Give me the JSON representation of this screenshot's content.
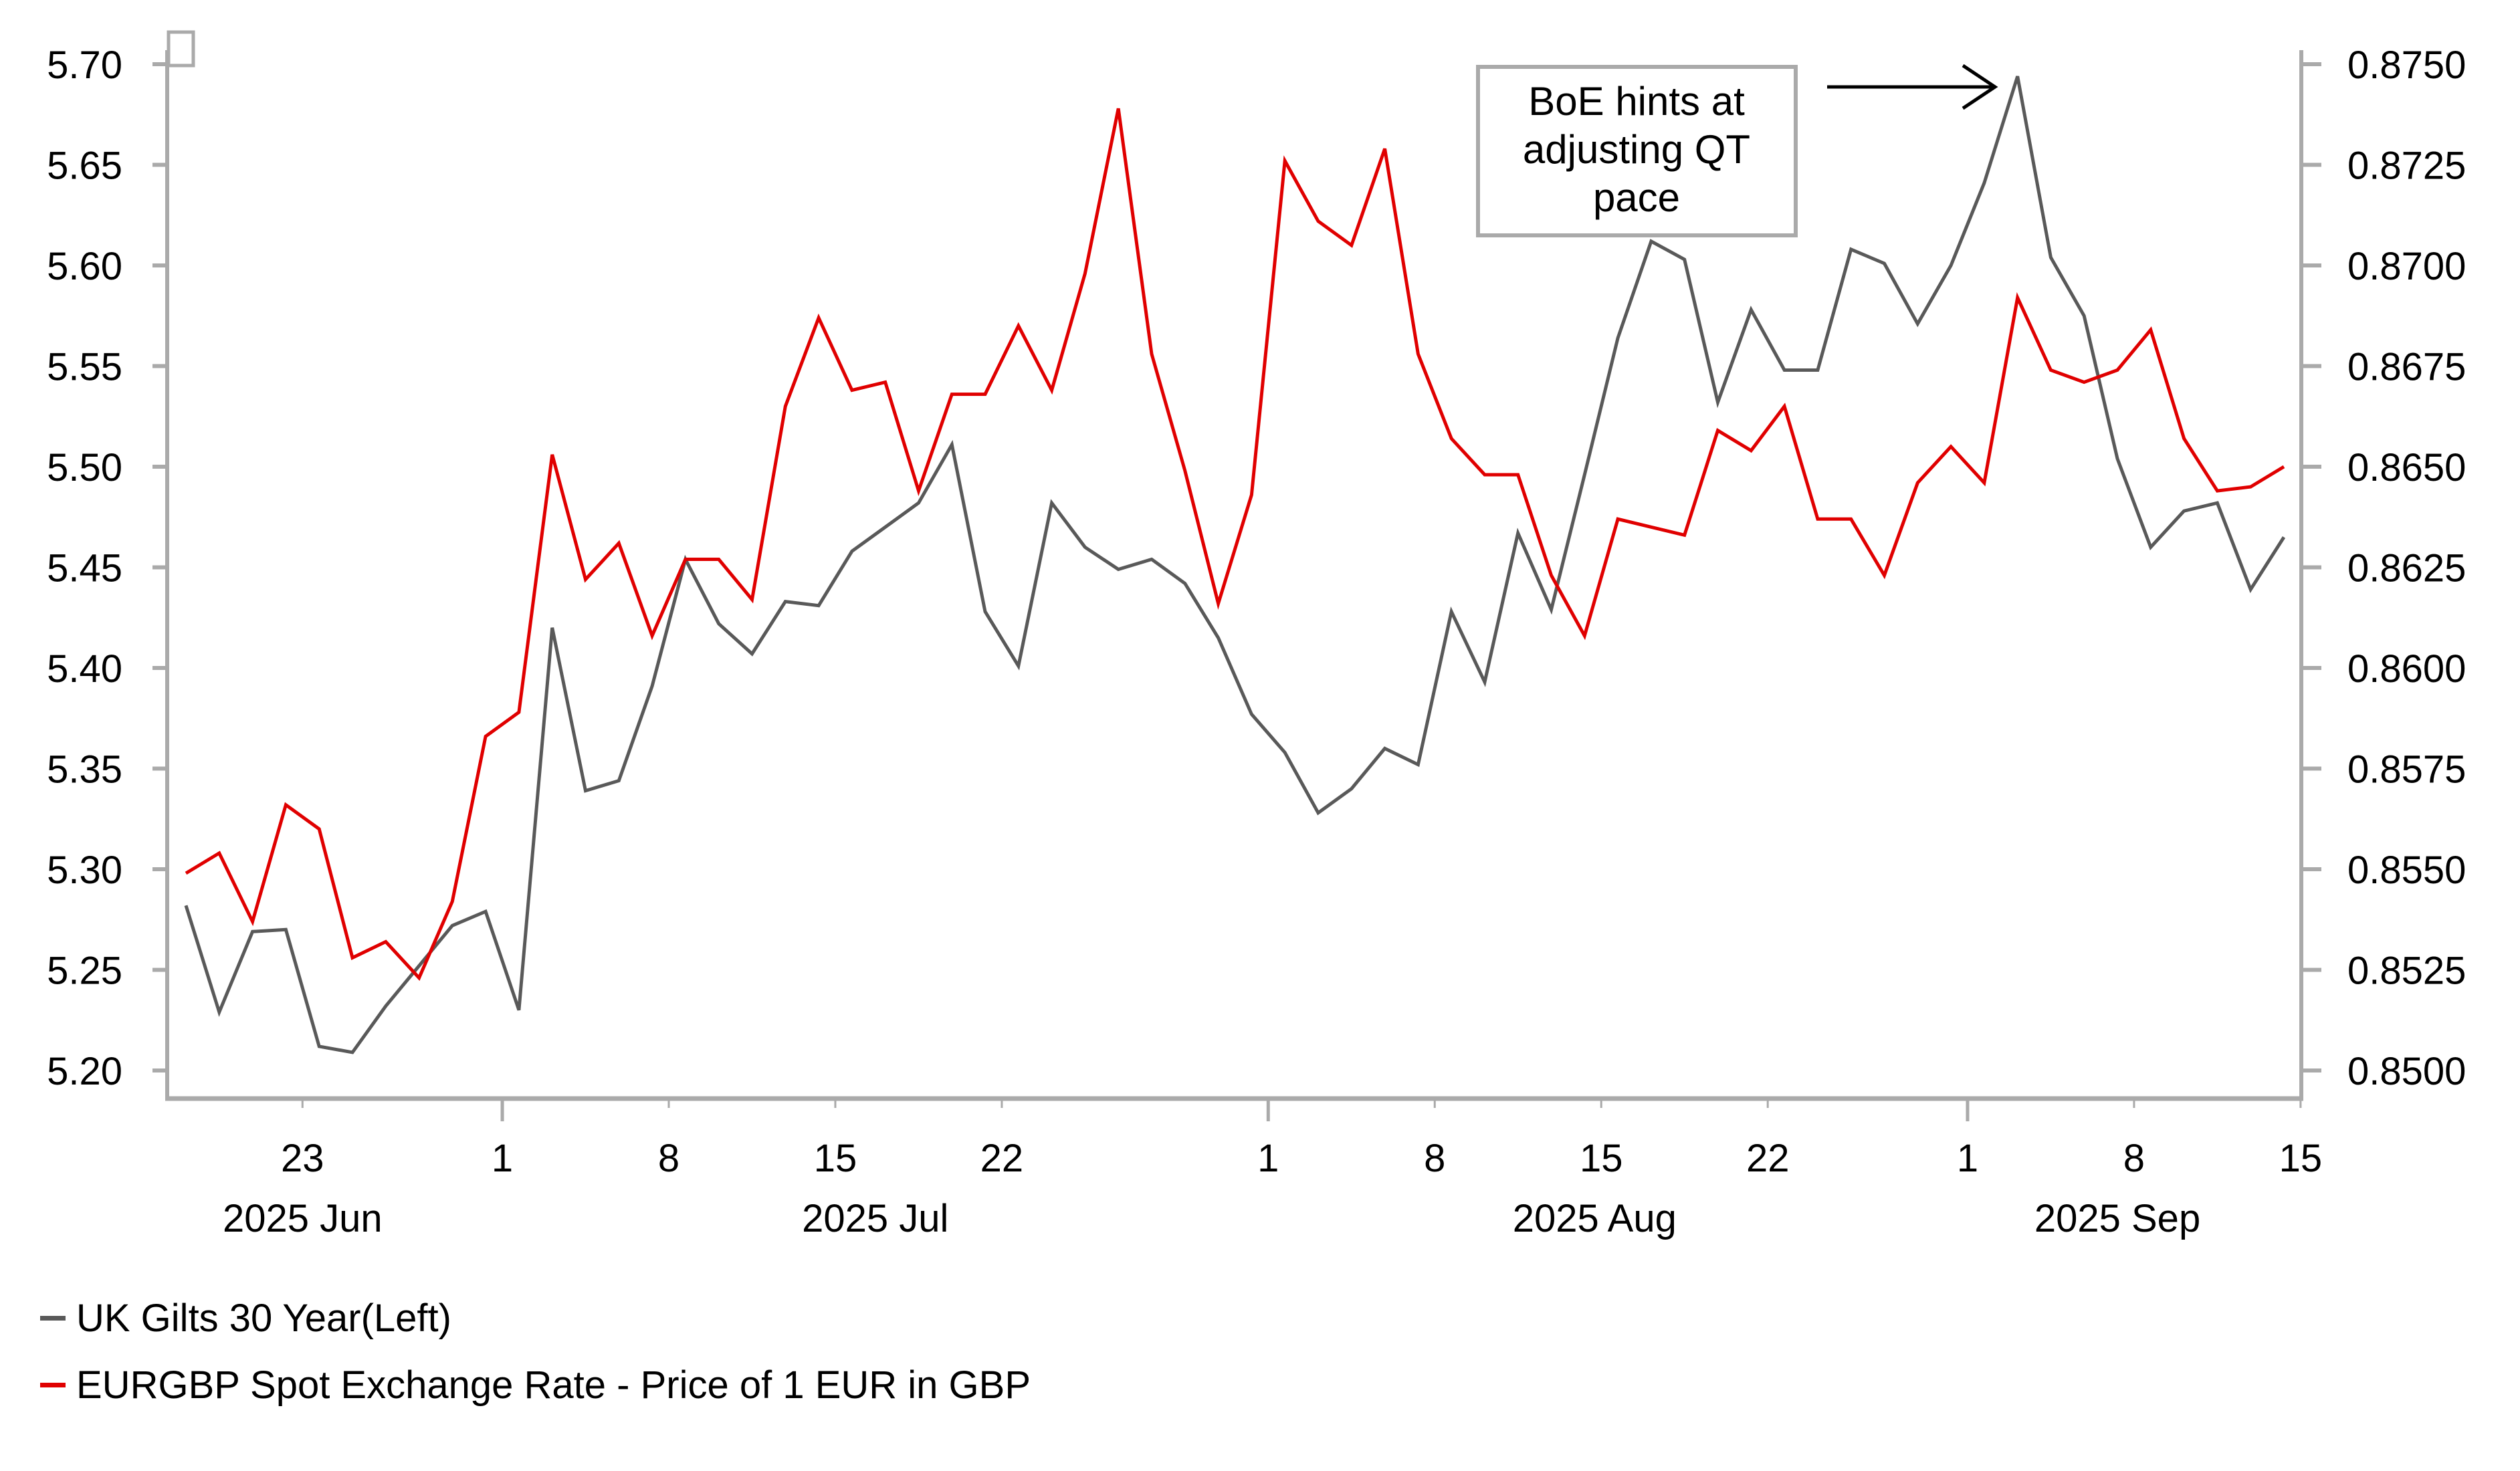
{
  "chart_data": {
    "type": "line",
    "title": "",
    "xlabel": "",
    "ylabel_left": "",
    "ylabel_right": "",
    "grid": false,
    "legend_position": "bottom-left",
    "left_axis": {
      "ylim": [
        5.2,
        5.7
      ],
      "ticks": [
        "5.20",
        "5.25",
        "5.30",
        "5.35",
        "5.40",
        "5.45",
        "5.50",
        "5.55",
        "5.60",
        "5.65",
        "5.70"
      ]
    },
    "right_axis": {
      "ylim": [
        0.85,
        0.875
      ],
      "ticks": [
        "0.8500",
        "0.8525",
        "0.8550",
        "0.8575",
        "0.8600",
        "0.8625",
        "0.8650",
        "0.8675",
        "0.8700",
        "0.8725",
        "0.8750"
      ]
    },
    "x": [
      "2025-06-17",
      "2025-06-18",
      "2025-06-19",
      "2025-06-20",
      "2025-06-23",
      "2025-06-24",
      "2025-06-25",
      "2025-06-26",
      "2025-06-27",
      "2025-06-30",
      "2025-07-01",
      "2025-07-02",
      "2025-07-03",
      "2025-07-04",
      "2025-07-07",
      "2025-07-08",
      "2025-07-09",
      "2025-07-10",
      "2025-07-11",
      "2025-07-14",
      "2025-07-15",
      "2025-07-16",
      "2025-07-17",
      "2025-07-18",
      "2025-07-21",
      "2025-07-22",
      "2025-07-23",
      "2025-07-24",
      "2025-07-25",
      "2025-07-28",
      "2025-07-29",
      "2025-07-30",
      "2025-07-31",
      "2025-08-01",
      "2025-08-04",
      "2025-08-05",
      "2025-08-06",
      "2025-08-07",
      "2025-08-08",
      "2025-08-11",
      "2025-08-12",
      "2025-08-13",
      "2025-08-14",
      "2025-08-15",
      "2025-08-18",
      "2025-08-19",
      "2025-08-20",
      "2025-08-21",
      "2025-08-22",
      "2025-08-25",
      "2025-08-26",
      "2025-08-27",
      "2025-08-28",
      "2025-08-29",
      "2025-09-01",
      "2025-09-02",
      "2025-09-03",
      "2025-09-04",
      "2025-09-05",
      "2025-09-08",
      "2025-09-09",
      "2025-09-10",
      "2025-09-11",
      "2025-09-12"
    ],
    "x_ticks": [
      {
        "label": "23",
        "index": 3.5,
        "major": false
      },
      {
        "label": "1",
        "index": 9.5,
        "major": true
      },
      {
        "label": "8",
        "index": 14.5,
        "major": false
      },
      {
        "label": "15",
        "index": 19.5,
        "major": false
      },
      {
        "label": "22",
        "index": 24.5,
        "major": false
      },
      {
        "label": "1",
        "index": 32.5,
        "major": true
      },
      {
        "label": "8",
        "index": 37.5,
        "major": false
      },
      {
        "label": "15",
        "index": 42.5,
        "major": false
      },
      {
        "label": "22",
        "index": 47.5,
        "major": false
      },
      {
        "label": "1",
        "index": 53.5,
        "major": true
      },
      {
        "label": "8",
        "index": 58.5,
        "major": false
      },
      {
        "label": "15",
        "index": 63.5,
        "major": false
      }
    ],
    "month_labels": [
      {
        "label": "2025 Jun",
        "index": 3.5
      },
      {
        "label": "2025 Jul",
        "index": 20.7
      },
      {
        "label": "2025 Aug",
        "index": 42.3
      },
      {
        "label": "2025 Sep",
        "index": 58.0
      }
    ],
    "series": [
      {
        "name": "UK Gilts 30 Year(Left)",
        "axis": "left",
        "color": "#595959",
        "values": [
          5.282,
          5.229,
          5.269,
          5.27,
          5.212,
          5.209,
          5.232,
          5.252,
          5.272,
          5.279,
          5.23,
          5.42,
          5.339,
          5.344,
          5.391,
          5.454,
          5.422,
          5.407,
          5.433,
          5.431,
          5.458,
          5.47,
          5.482,
          5.511,
          5.428,
          5.401,
          5.482,
          5.46,
          5.449,
          5.454,
          5.442,
          5.415,
          5.377,
          5.358,
          5.328,
          5.34,
          5.36,
          5.352,
          5.428,
          5.393,
          5.467,
          5.429,
          5.496,
          5.564,
          5.612,
          5.603,
          5.532,
          5.578,
          5.548,
          5.548,
          5.608,
          5.601,
          5.571,
          5.6,
          5.641,
          5.694,
          5.604,
          5.575,
          5.504,
          5.46,
          5.478,
          5.482,
          5.439,
          5.465
        ]
      },
      {
        "name": "EURGBP Spot Exchange Rate - Price of 1 EUR in GBP",
        "axis": "right",
        "color": "#e00000",
        "values": [
          0.8549,
          0.8554,
          0.8537,
          0.8566,
          0.856,
          0.8528,
          0.8532,
          0.8523,
          0.8542,
          0.8583,
          0.8589,
          0.8653,
          0.8622,
          0.8631,
          0.8608,
          0.8627,
          0.8627,
          0.8617,
          0.8665,
          0.8687,
          0.8669,
          0.8671,
          0.8644,
          0.8668,
          0.8668,
          0.8685,
          0.8669,
          0.8698,
          0.8739,
          0.8678,
          0.8649,
          0.8616,
          0.8643,
          0.8726,
          0.8711,
          0.8705,
          0.8729,
          0.8678,
          0.8657,
          0.8648,
          0.8648,
          0.8623,
          0.8608,
          0.8637,
          0.8635,
          0.8633,
          0.8659,
          0.8654,
          0.8665,
          0.8637,
          0.8637,
          0.8623,
          0.8646,
          0.8655,
          0.8646,
          0.8692,
          0.8674,
          0.8671,
          0.8674,
          0.8684,
          0.8657,
          0.8644,
          0.8645,
          0.865
        ]
      }
    ],
    "annotation": {
      "lines": [
        "BoE hints at",
        "adjusting QT",
        "pace"
      ],
      "points_to_index": 55
    }
  },
  "legend": {
    "items": [
      {
        "label": "UK Gilts 30 Year(Left)",
        "color": "#595959"
      },
      {
        "label": "EURGBP Spot Exchange Rate - Price of 1 EUR in GBP",
        "color": "#e00000"
      }
    ]
  }
}
